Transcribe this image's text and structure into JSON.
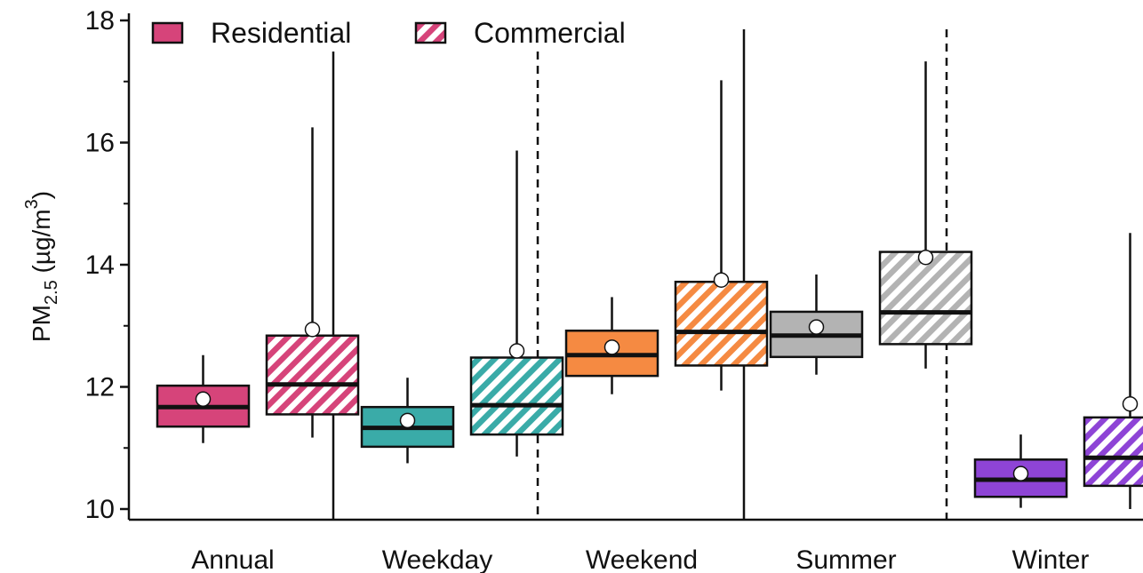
{
  "chart_data": {
    "type": "box",
    "ylabel": {
      "base": "PM",
      "sub": "2.5",
      "unit_pre": " (µg/m",
      "sup": "3",
      "unit_post": ")"
    },
    "ylim": [
      10,
      18
    ],
    "yticks": [
      10,
      12,
      14,
      16,
      18
    ],
    "yminor": [
      11,
      13,
      15,
      17
    ],
    "categories": [
      "Annual",
      "Weekday",
      "Weekend",
      "Summer",
      "Winter"
    ],
    "series": [
      {
        "name": "Residential",
        "pattern": "solid"
      },
      {
        "name": "Commercial",
        "pattern": "hatched"
      }
    ],
    "colors": {
      "Annual": "#d6447a",
      "Weekday": "#3aaba8",
      "Weekend": "#f58a42",
      "Summer": "#b3b3b3",
      "Winter": "#8e44d6"
    },
    "boxes": [
      {
        "category": "Annual",
        "series": "Residential",
        "min": 11.08,
        "q1": 11.35,
        "median": 11.67,
        "q3": 12.02,
        "max": 12.52,
        "mean": 11.8
      },
      {
        "category": "Annual",
        "series": "Commercial",
        "min": 11.17,
        "q1": 11.55,
        "median": 12.04,
        "q3": 12.84,
        "max": 16.25,
        "mean": 12.94
      },
      {
        "category": "Weekday",
        "series": "Residential",
        "min": 10.75,
        "q1": 11.02,
        "median": 11.33,
        "q3": 11.67,
        "max": 12.15,
        "mean": 11.45
      },
      {
        "category": "Weekday",
        "series": "Commercial",
        "min": 10.86,
        "q1": 11.22,
        "median": 11.7,
        "q3": 12.48,
        "max": 15.87,
        "mean": 12.59
      },
      {
        "category": "Weekend",
        "series": "Residential",
        "min": 11.88,
        "q1": 12.18,
        "median": 12.52,
        "q3": 12.92,
        "max": 13.47,
        "mean": 12.65
      },
      {
        "category": "Weekend",
        "series": "Commercial",
        "min": 11.94,
        "q1": 12.35,
        "median": 12.9,
        "q3": 13.72,
        "max": 17.02,
        "mean": 13.75
      },
      {
        "category": "Summer",
        "series": "Residential",
        "min": 12.2,
        "q1": 12.49,
        "median": 12.84,
        "q3": 13.23,
        "max": 13.84,
        "mean": 12.98
      },
      {
        "category": "Summer",
        "series": "Commercial",
        "min": 12.3,
        "q1": 12.7,
        "median": 13.22,
        "q3": 14.21,
        "max": 17.33,
        "mean": 14.12
      },
      {
        "category": "Winter",
        "series": "Residential",
        "min": 10.02,
        "q1": 10.2,
        "median": 10.48,
        "q3": 10.81,
        "max": 11.22,
        "mean": 10.58
      },
      {
        "category": "Winter",
        "series": "Commercial",
        "min": 10.0,
        "q1": 10.38,
        "median": 10.84,
        "q3": 11.5,
        "max": 14.52,
        "mean": 11.72
      }
    ],
    "separators": [
      {
        "between": [
          "Annual",
          "Weekday"
        ],
        "style": "solid"
      },
      {
        "between": [
          "Weekday",
          "Weekend"
        ],
        "style": "dashed"
      },
      {
        "between": [
          "Weekend",
          "Summer"
        ],
        "style": "solid"
      },
      {
        "between": [
          "Summer",
          "Winter"
        ],
        "style": "dashed"
      }
    ],
    "legend_position": "top-left",
    "grid": false
  }
}
